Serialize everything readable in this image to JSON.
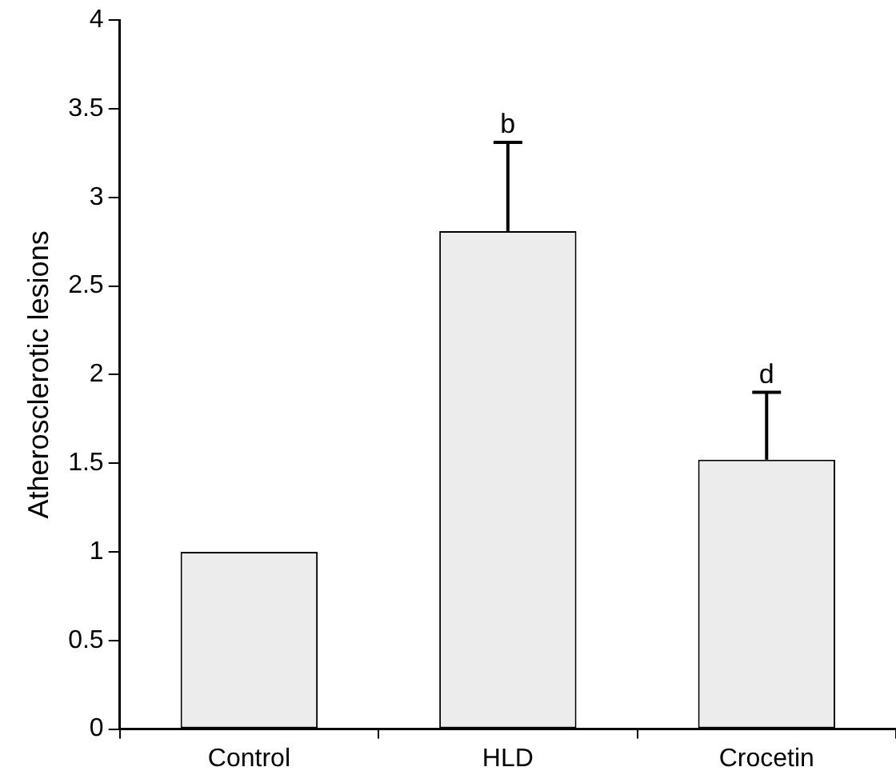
{
  "chart_data": {
    "type": "bar",
    "ylabel": "Atherosclerotic lesions",
    "categories": [
      "Control",
      "HLD",
      "Crocetin"
    ],
    "values": [
      1.0,
      2.81,
      1.52
    ],
    "errors": [
      null,
      [
        2.81,
        3.31
      ],
      [
        1.52,
        1.9
      ]
    ],
    "color": "#ececec",
    "ylim": [
      0,
      4
    ],
    "yticks": [
      0,
      0.5,
      1,
      1.5,
      2,
      2.5,
      3,
      3.5,
      4
    ],
    "grid": false,
    "legend": false,
    "annotations": [
      {
        "text": "b",
        "x": "HLD",
        "y": 3.31
      },
      {
        "text": "d",
        "x": "Crocetin",
        "y": 1.9
      }
    ]
  }
}
